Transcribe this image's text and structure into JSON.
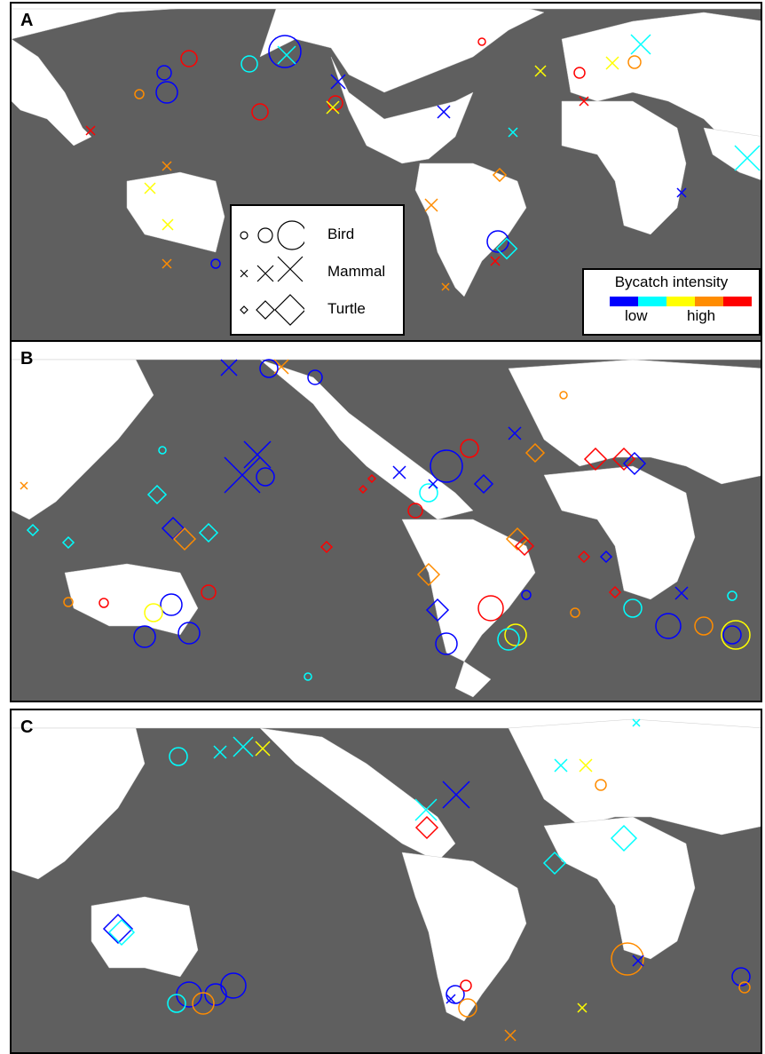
{
  "panels": [
    {
      "label": "A"
    },
    {
      "label": "B"
    },
    {
      "label": "C"
    }
  ],
  "legend": {
    "species": [
      {
        "label": "Bird",
        "symbol": "circle"
      },
      {
        "label": "Mammal",
        "symbol": "cross"
      },
      {
        "label": "Turtle",
        "symbol": "diamond"
      }
    ]
  },
  "intensity": {
    "title": "Bycatch intensity",
    "low": "low",
    "high": "high",
    "colors": [
      "#0000ff",
      "#00ffff",
      "#ffff00",
      "#ff8c00",
      "#ff0000"
    ]
  },
  "colors": {
    "ocean": "#5f5f5f",
    "land": "#ffffff"
  }
}
